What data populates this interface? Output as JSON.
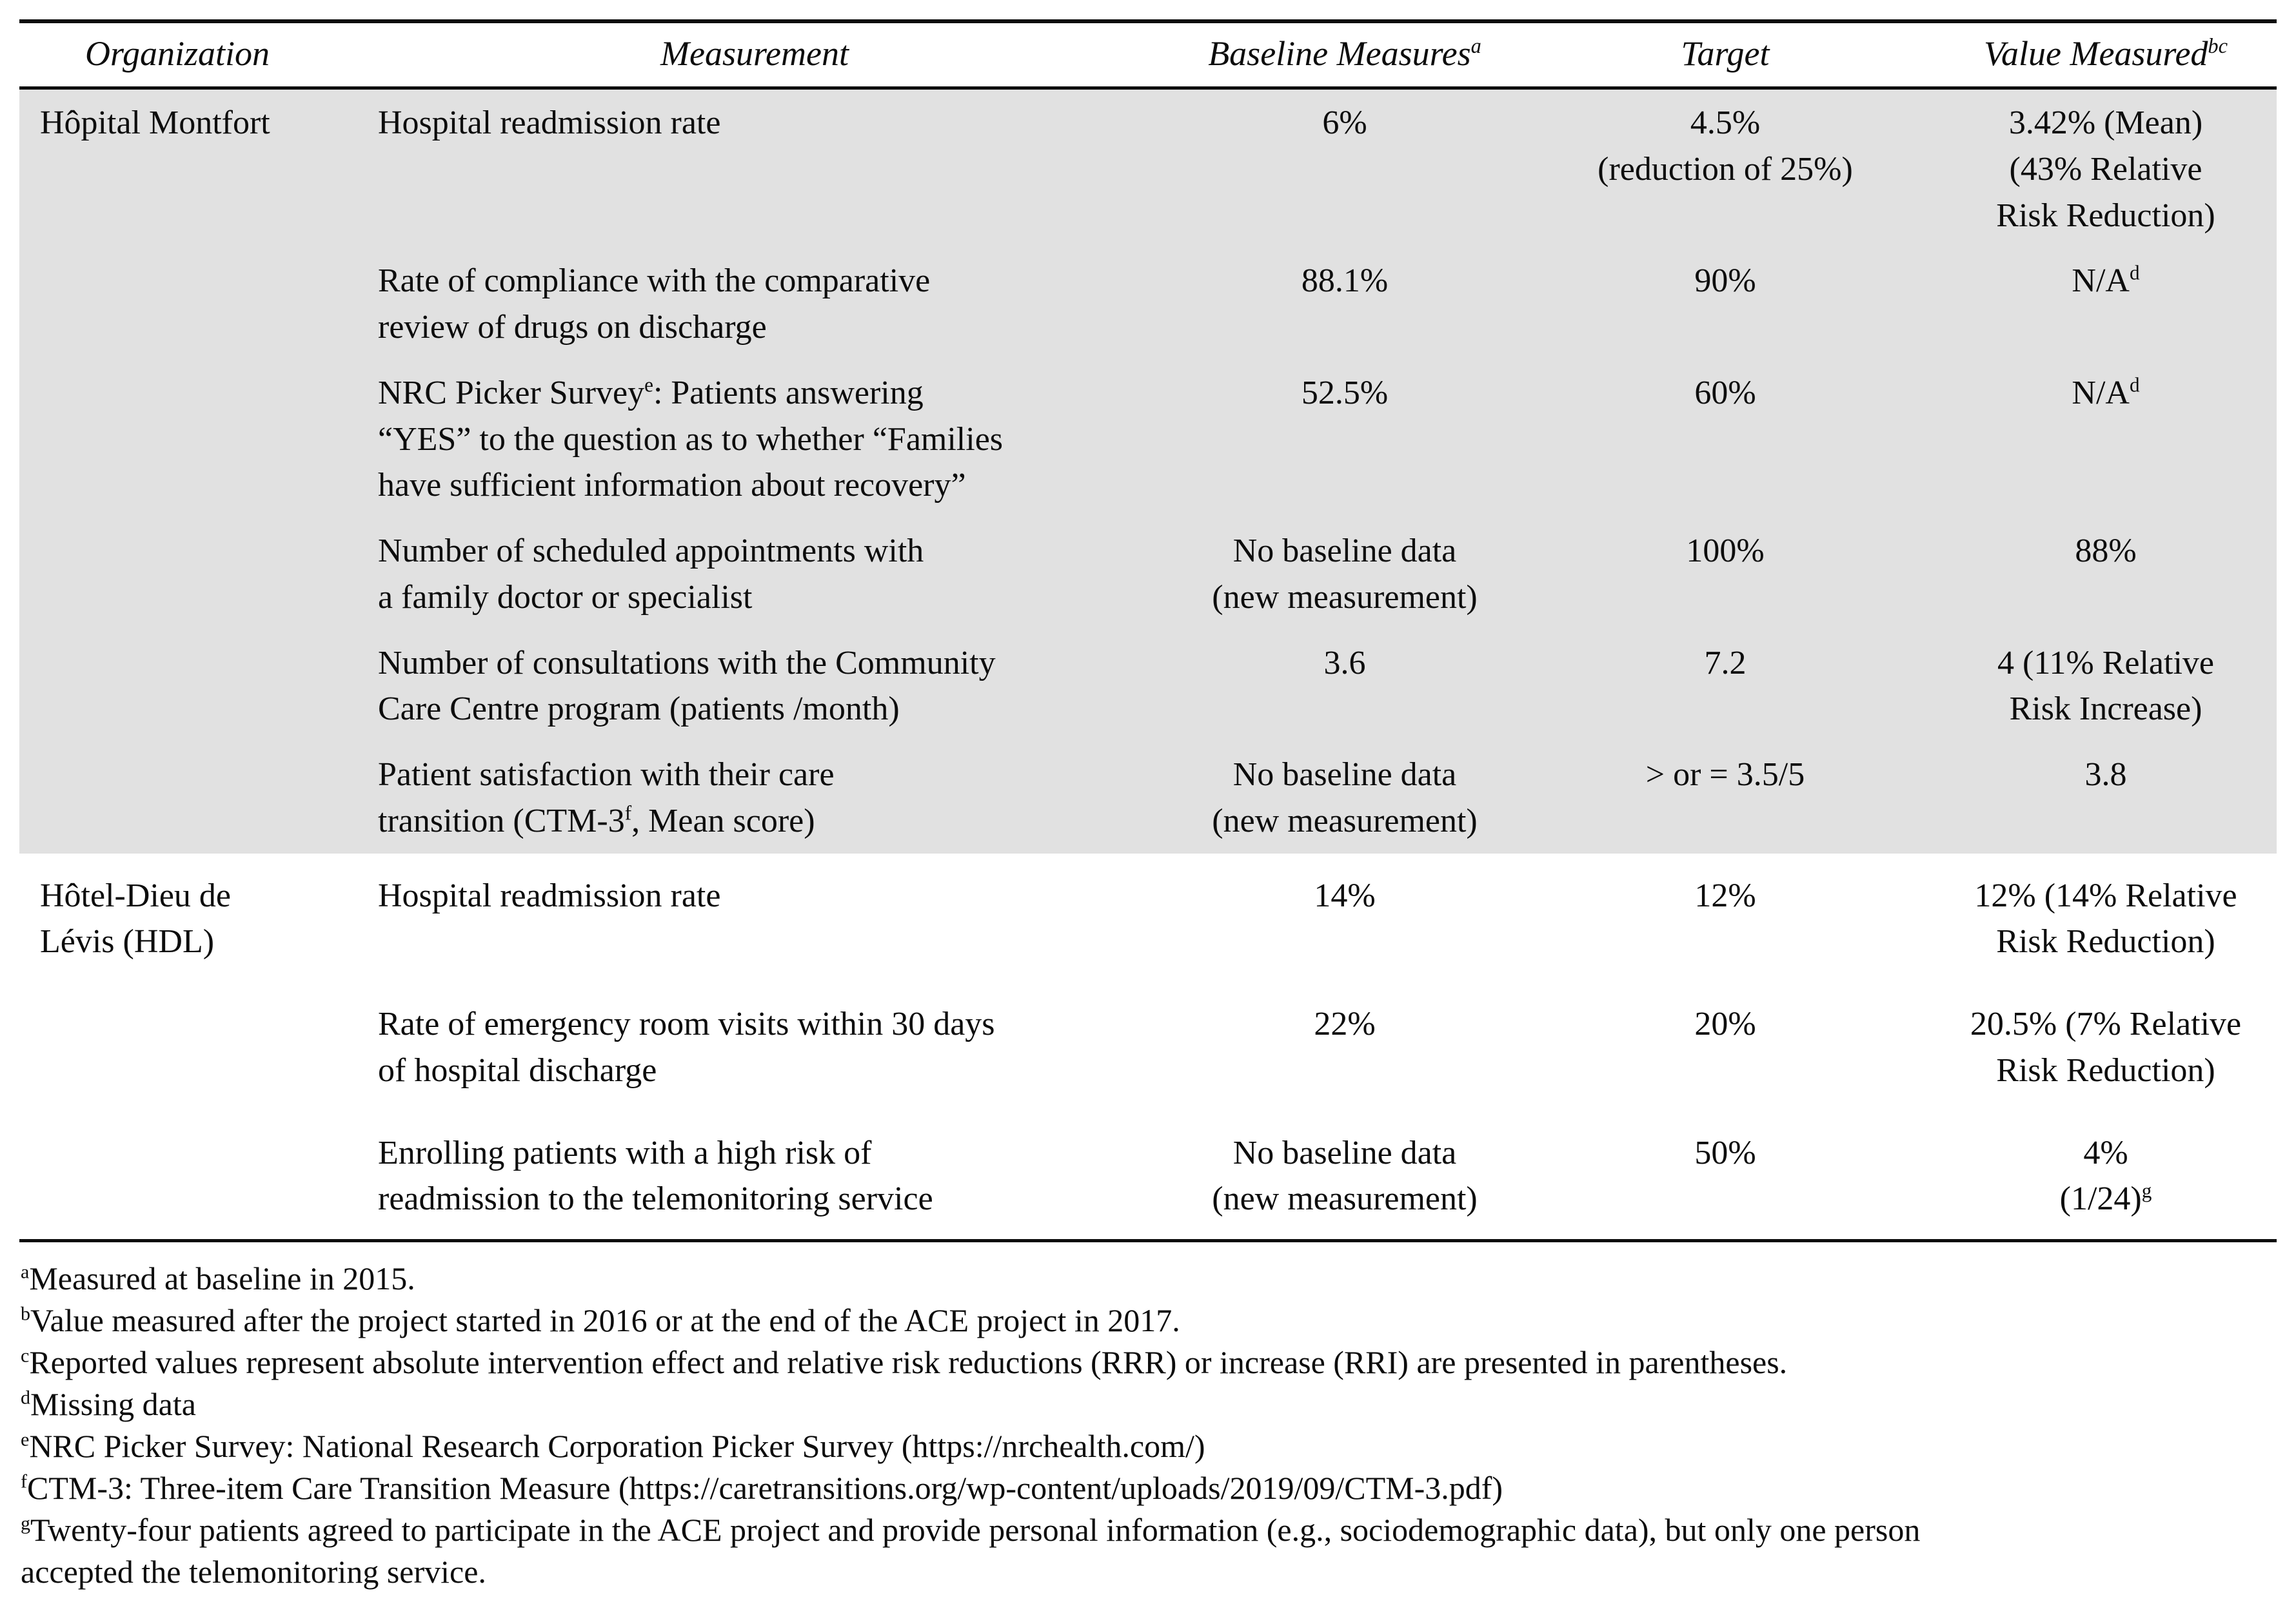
{
  "table": {
    "headers": {
      "organization": "Organization",
      "measurement": "Measurement",
      "baseline": {
        "text": "Baseline Measures",
        "sup": "a"
      },
      "target": "Target",
      "value": {
        "text": "Value Measured",
        "sup": "bc"
      }
    },
    "groups": [
      {
        "organization": "Hôpital Montfort",
        "rows": [
          {
            "measurement": {
              "pre": "Hospital readmission rate",
              "sup": "",
              "post": ""
            },
            "baseline": "6%",
            "target": "4.5%\n(reduction of 25%)",
            "value": {
              "pre": "3.42% (Mean)\n(43% Relative\nRisk Reduction)",
              "sup": "",
              "post": ""
            }
          },
          {
            "measurement": {
              "pre": "Rate of compliance with the comparative\nreview of drugs on discharge",
              "sup": "",
              "post": ""
            },
            "baseline": "88.1%",
            "target": "90%",
            "value": {
              "pre": "N/A",
              "sup": "d",
              "post": ""
            }
          },
          {
            "measurement": {
              "pre": "NRC Picker Survey",
              "sup": "e",
              "post": ": Patients answering\n“YES” to the question as to whether “Families\nhave sufficient information about recovery”"
            },
            "baseline": "52.5%",
            "target": "60%",
            "value": {
              "pre": "N/A",
              "sup": "d",
              "post": ""
            }
          },
          {
            "measurement": {
              "pre": "Number of scheduled appointments with\na family doctor or specialist",
              "sup": "",
              "post": ""
            },
            "baseline": "No baseline data\n(new measurement)",
            "target": "100%",
            "value": {
              "pre": "88%",
              "sup": "",
              "post": ""
            }
          },
          {
            "measurement": {
              "pre": "Number of consultations with the Community\nCare Centre program (patients /month)",
              "sup": "",
              "post": ""
            },
            "baseline": "3.6",
            "target": "7.2",
            "value": {
              "pre": "4 (11% Relative\nRisk Increase)",
              "sup": "",
              "post": ""
            }
          },
          {
            "measurement": {
              "pre": "Patient satisfaction with their care\ntransition (CTM-3",
              "sup": "f",
              "post": ", Mean score)"
            },
            "baseline": "No baseline data\n(new measurement)",
            "target": "> or = 3.5/5",
            "value": {
              "pre": "3.8",
              "sup": "",
              "post": ""
            }
          }
        ]
      },
      {
        "organization": "Hôtel-Dieu de\nLévis (HDL)",
        "rows": [
          {
            "measurement": {
              "pre": "Hospital readmission rate",
              "sup": "",
              "post": ""
            },
            "baseline": "14%",
            "target": "12%",
            "value": {
              "pre": "12% (14% Relative\nRisk Reduction)",
              "sup": "",
              "post": ""
            }
          },
          {
            "measurement": {
              "pre": "Rate of emergency room visits within 30 days\nof hospital discharge",
              "sup": "",
              "post": ""
            },
            "baseline": "22%",
            "target": "20%",
            "value": {
              "pre": "20.5% (7% Relative\nRisk Reduction)",
              "sup": "",
              "post": ""
            }
          },
          {
            "measurement": {
              "pre": "Enrolling patients with a high risk of\nreadmission to the telemonitoring service",
              "sup": "",
              "post": ""
            },
            "baseline": "No baseline data\n(new measurement)",
            "target": "50%",
            "value": {
              "pre": "4%\n(1/24)",
              "sup": "g",
              "post": ""
            }
          }
        ]
      }
    ]
  },
  "footnotes": [
    {
      "sup": "a",
      "text": "Measured at baseline in 2015."
    },
    {
      "sup": "b",
      "text": "Value measured after the project started in 2016 or at the end of the ACE project in 2017."
    },
    {
      "sup": "c",
      "text": "Reported values represent absolute intervention effect and relative risk reductions (RRR) or increase (RRI) are presented in parentheses."
    },
    {
      "sup": "d",
      "text": "Missing data"
    },
    {
      "sup": "e",
      "text": "NRC Picker Survey: National Research Corporation Picker Survey (https://nrchealth.com/)"
    },
    {
      "sup": "f",
      "text": "CTM-3: Three-item Care Transition Measure (https://caretransitions.org/wp-content/uploads/2019/09/CTM-3.pdf)"
    },
    {
      "sup": "g",
      "text": "Twenty-four patients agreed to participate in the ACE project and provide personal information (e.g., sociodemographic data), but only one person\naccepted the telemonitoring service."
    }
  ]
}
